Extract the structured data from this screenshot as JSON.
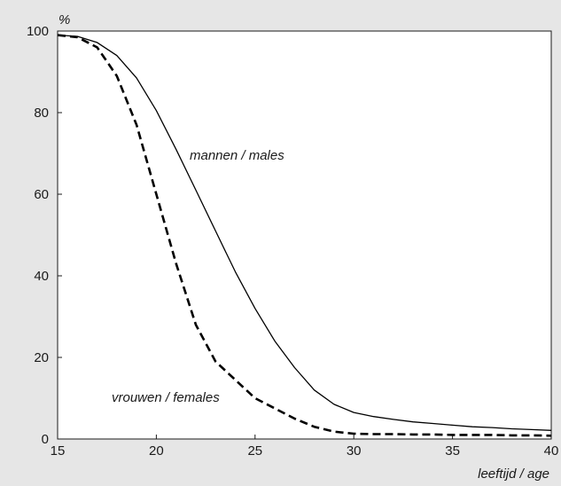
{
  "chart_data": {
    "type": "line",
    "title": "",
    "xlabel": "leeftijd / age",
    "ylabel": "%",
    "xlim": [
      15,
      40
    ],
    "ylim": [
      0,
      100
    ],
    "x_ticks": [
      15,
      20,
      25,
      30,
      35,
      40
    ],
    "y_ticks": [
      0,
      20,
      40,
      60,
      80,
      100
    ],
    "grid": false,
    "legend": "none (series labelled directly on plot)",
    "series": [
      {
        "name": "mannen / males",
        "style": "solid",
        "color": "#000000",
        "x": [
          15,
          16,
          17,
          18,
          19,
          20,
          21,
          22,
          23,
          24,
          25,
          26,
          27,
          28,
          29,
          30,
          31,
          32,
          33,
          34,
          35,
          36,
          37,
          38,
          39,
          40
        ],
        "y": [
          99,
          98.7,
          97.2,
          94,
          88.5,
          80.5,
          71,
          61,
          51,
          41,
          32,
          24,
          17.5,
          12,
          8.5,
          6.5,
          5.5,
          4.8,
          4.2,
          3.8,
          3.4,
          3,
          2.8,
          2.5,
          2.3,
          2.1
        ]
      },
      {
        "name": "vrouwen / females",
        "style": "dashed",
        "color": "#000000",
        "x": [
          15,
          16,
          17,
          18,
          19,
          20,
          21,
          22,
          23,
          24,
          25,
          26,
          27,
          28,
          29,
          30,
          31,
          32,
          33,
          34,
          35,
          36,
          37,
          38,
          39,
          40
        ],
        "y": [
          99,
          98.5,
          96,
          89,
          77,
          60,
          43,
          28,
          19,
          14.5,
          10,
          7.5,
          5,
          3,
          1.8,
          1.3,
          1.2,
          1.2,
          1.1,
          1.1,
          1,
          1,
          1,
          0.9,
          0.9,
          0.8
        ]
      }
    ]
  }
}
